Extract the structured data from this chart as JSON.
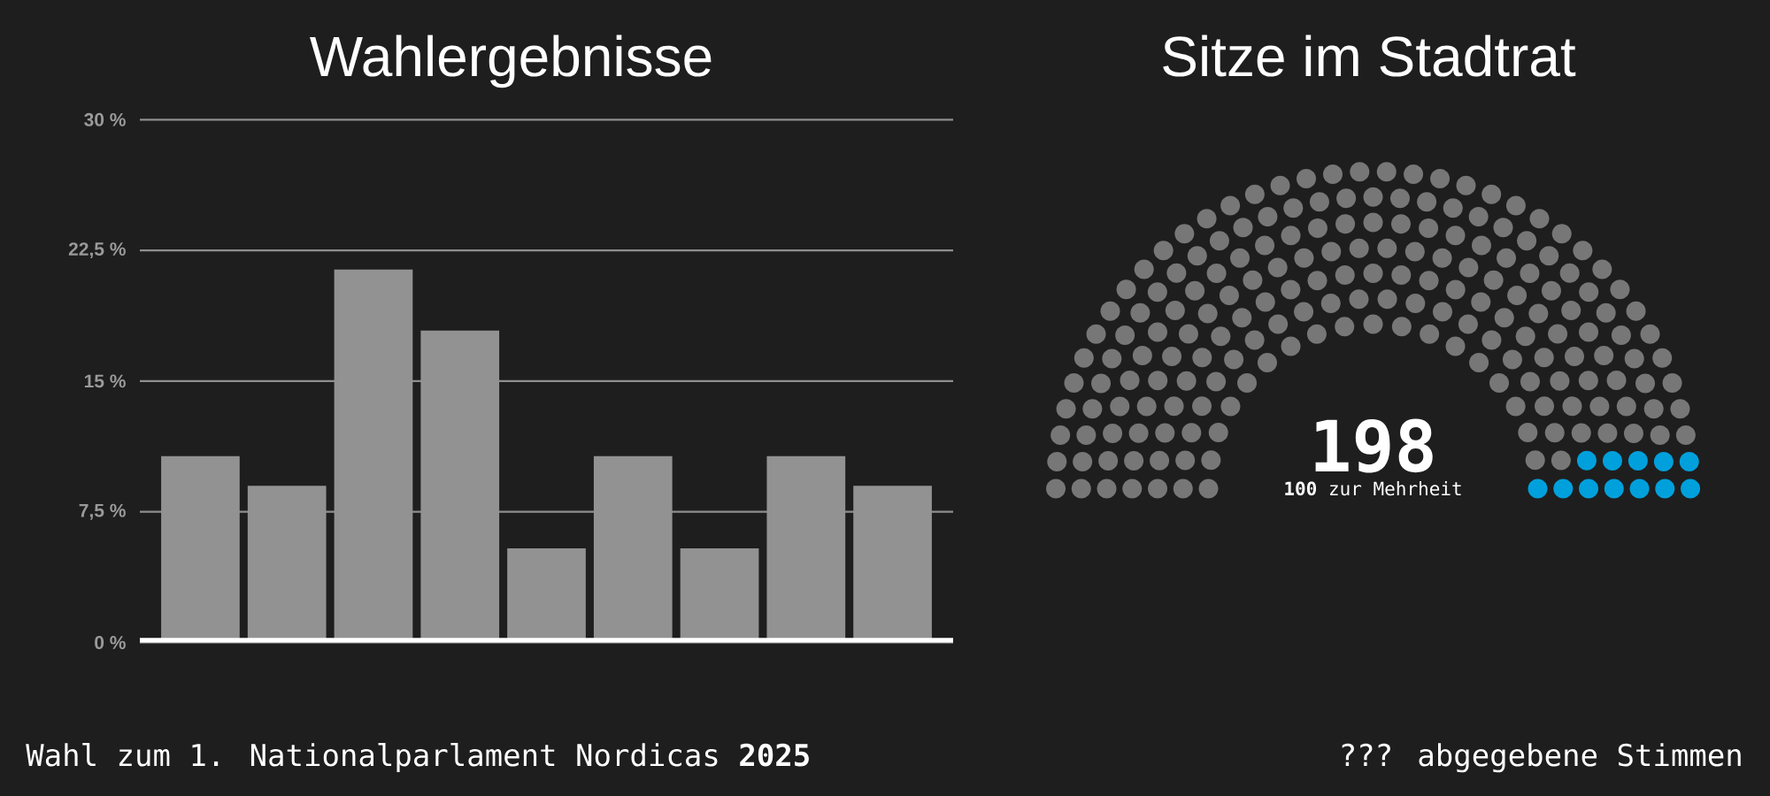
{
  "chart_data": [
    {
      "type": "bar",
      "title": "Wahlergebnisse",
      "categories": [
        null,
        null,
        null,
        null,
        null,
        null,
        null,
        null,
        null
      ],
      "values": [
        10.7,
        9.0,
        21.4,
        17.9,
        5.4,
        10.7,
        5.4,
        10.7,
        9.0
      ],
      "color": "#929292",
      "ylim": [
        0,
        30
      ],
      "yticks": [
        {
          "value": 0,
          "label": "0 %"
        },
        {
          "value": 7.5,
          "label": "7,5 %"
        },
        {
          "value": 15,
          "label": "15 %"
        },
        {
          "value": 22.5,
          "label": "22,5 %"
        },
        {
          "value": 30,
          "label": "30 %"
        }
      ],
      "grid": "y",
      "tick_labels": "y",
      "annotations": [
        "Wahl zum 1. Nationalparlament Nordicas **2025**"
      ]
    },
    {
      "type": "other",
      "title": "Sitze im Stadtrat",
      "annotations": [
        "198",
        "**100** zur Mehrheit",
        "??? abgegebene Stimmen"
      ]
    }
  ]
}
